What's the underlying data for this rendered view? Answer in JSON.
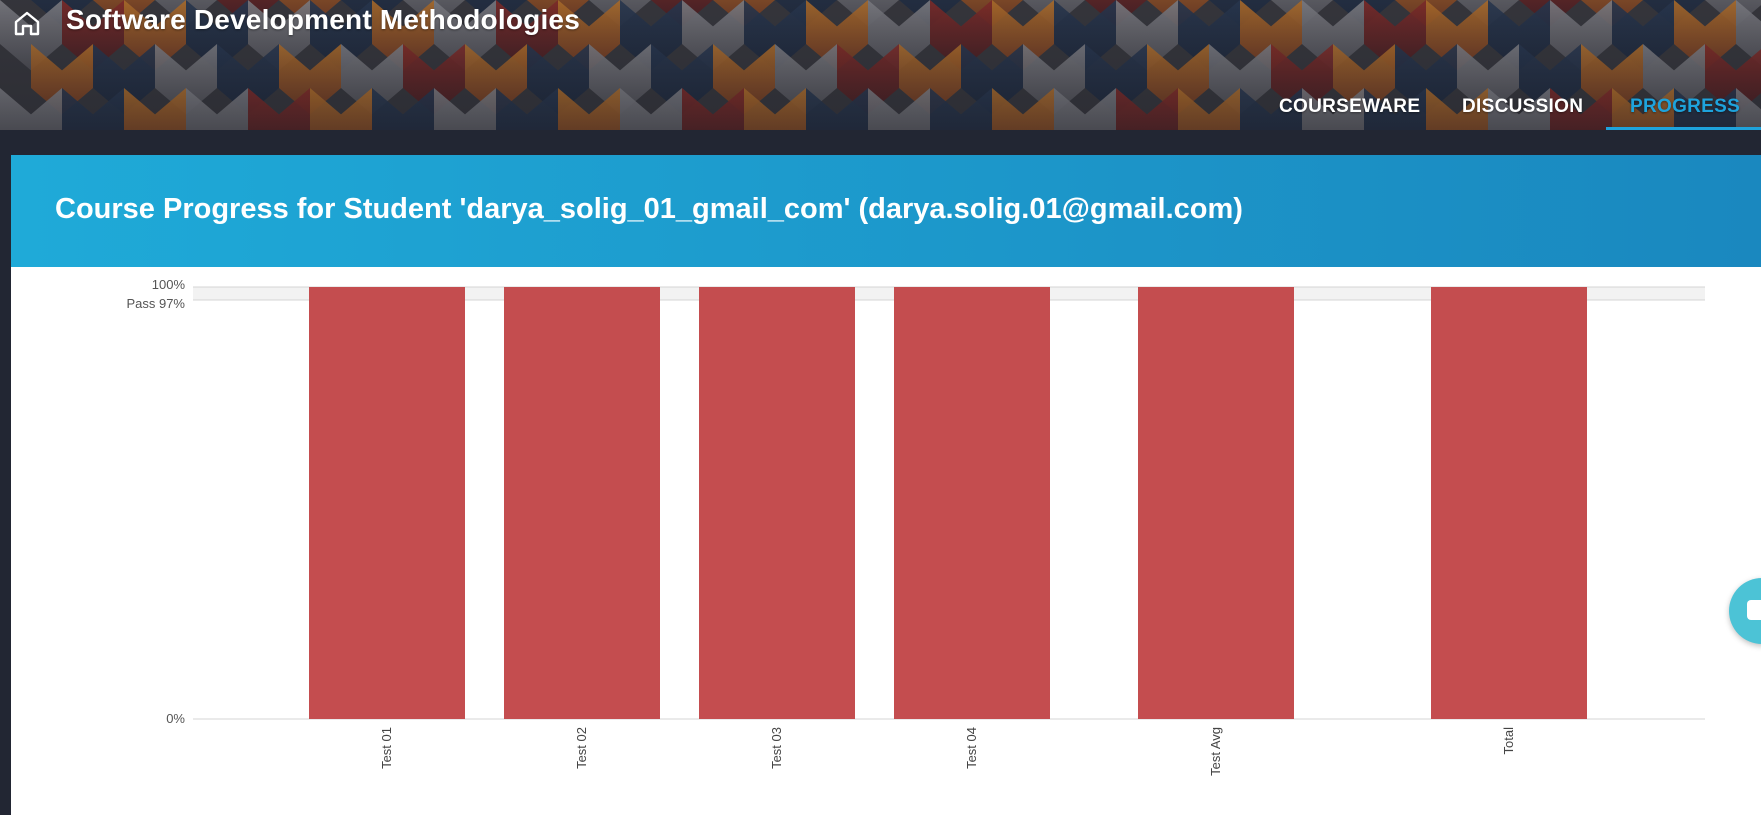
{
  "header": {
    "course_title": "Software Development Methodologies",
    "home_icon": "home-icon"
  },
  "nav": {
    "tabs": [
      {
        "label": "COURSEWARE",
        "active": false
      },
      {
        "label": "DISCUSSION",
        "active": false
      },
      {
        "label": "PROGRESS",
        "active": true
      }
    ]
  },
  "card": {
    "title": "Course Progress for Student 'darya_solig_01_gmail_com' (darya.solig.01@gmail.com)"
  },
  "chart_data": {
    "type": "bar",
    "categories": [
      "Test 01",
      "Test 02",
      "Test 03",
      "Test 04",
      "Test Avg",
      "Total"
    ],
    "values": [
      100,
      100,
      100,
      100,
      100,
      100
    ],
    "ylim": [
      0,
      100
    ],
    "y_ticks": [
      {
        "value": 100,
        "label": "100%"
      },
      {
        "value": 97,
        "label": "Pass 97%"
      },
      {
        "value": 0,
        "label": "0%"
      }
    ],
    "pass_threshold": 97,
    "bar_color": "#c44d4f",
    "pass_band_color": "#f2f2f2"
  },
  "colors": {
    "accent": "#1ea3dc",
    "header_band": "#1faad8"
  },
  "chat_button": {
    "icon": "chat-icon"
  }
}
